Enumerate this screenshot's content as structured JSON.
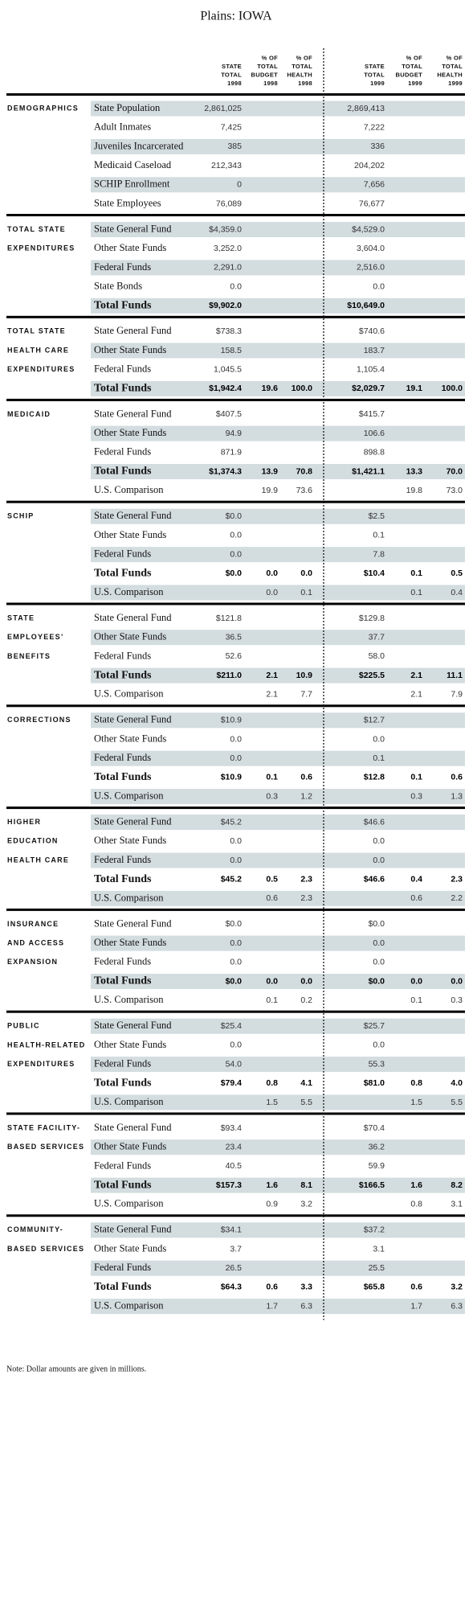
{
  "title": "Plains: IOWA",
  "header": [
    [
      "STATE",
      "TOTAL",
      "1998"
    ],
    [
      "% OF",
      "TOTAL",
      "BUDGET",
      "1998"
    ],
    [
      "% OF",
      "TOTAL",
      "HEALTH",
      "1998"
    ],
    [
      "STATE",
      "TOTAL",
      "1999"
    ],
    [
      "% OF",
      "TOTAL",
      "BUDGET",
      "1999"
    ],
    [
      "% OF",
      "TOTAL",
      "HEALTH",
      "1999"
    ]
  ],
  "sections": [
    {
      "label": [
        "DEMOGRAPHICS"
      ],
      "rows": [
        {
          "name": "State Population",
          "cells": [
            "2,861,025",
            null,
            null,
            "2,869,413",
            null,
            null
          ]
        },
        {
          "name": "Adult Inmates",
          "cells": [
            "7,425",
            null,
            null,
            "7,222",
            null,
            null
          ]
        },
        {
          "name": "Juveniles Incarcerated",
          "cells": [
            "385",
            null,
            null,
            "336",
            null,
            null
          ]
        },
        {
          "name": "Medicaid Caseload",
          "cells": [
            "212,343",
            null,
            null,
            "204,202",
            null,
            null
          ]
        },
        {
          "name": "SCHIP Enrollment",
          "cells": [
            "0",
            null,
            null,
            "7,656",
            null,
            null
          ]
        },
        {
          "name": "State Employees",
          "cells": [
            "76,089",
            null,
            null,
            "76,677",
            null,
            null
          ]
        }
      ]
    },
    {
      "label": [
        "TOTAL STATE",
        "EXPENDITURES"
      ],
      "rows": [
        {
          "name": "State General Fund",
          "cells": [
            "$4,359.0",
            null,
            null,
            "$4,529.0",
            null,
            null
          ]
        },
        {
          "name": "Other State Funds",
          "cells": [
            "3,252.0",
            null,
            null,
            "3,604.0",
            null,
            null
          ]
        },
        {
          "name": "Federal Funds",
          "cells": [
            "2,291.0",
            null,
            null,
            "2,516.0",
            null,
            null
          ]
        },
        {
          "name": "State Bonds",
          "cells": [
            "0.0",
            null,
            null,
            "0.0",
            null,
            null
          ]
        },
        {
          "name": "Total Funds",
          "cells": [
            "$9,902.0",
            null,
            null,
            "$10,649.0",
            null,
            null
          ]
        }
      ]
    },
    {
      "label": [
        "TOTAL STATE",
        "HEALTH CARE",
        "EXPENDITURES"
      ],
      "rows": [
        {
          "name": "State General Fund",
          "cells": [
            "$738.3",
            null,
            null,
            "$740.6",
            null,
            null
          ]
        },
        {
          "name": "Other State Funds",
          "cells": [
            "158.5",
            null,
            null,
            "183.7",
            null,
            null
          ]
        },
        {
          "name": "Federal Funds",
          "cells": [
            "1,045.5",
            null,
            null,
            "1,105.4",
            null,
            null
          ]
        },
        {
          "name": "Total Funds",
          "cells": [
            "$1,942.4",
            "19.6",
            "100.0",
            "$2,029.7",
            "19.1",
            "100.0"
          ]
        }
      ]
    },
    {
      "label": [
        "MEDICAID"
      ],
      "rows": [
        {
          "name": "State General Fund",
          "cells": [
            "$407.5",
            null,
            null,
            "$415.7",
            null,
            null
          ]
        },
        {
          "name": "Other State Funds",
          "cells": [
            "94.9",
            null,
            null,
            "106.6",
            null,
            null
          ]
        },
        {
          "name": "Federal Funds",
          "cells": [
            "871.9",
            null,
            null,
            "898.8",
            null,
            null
          ]
        },
        {
          "name": "Total Funds",
          "cells": [
            "$1,374.3",
            "13.9",
            "70.8",
            "$1,421.1",
            "13.3",
            "70.0"
          ]
        },
        {
          "name": "U.S. Comparison",
          "cells": [
            null,
            "19.9",
            "73.6",
            null,
            "19.8",
            "73.0"
          ]
        }
      ]
    },
    {
      "label": [
        "SCHIP"
      ],
      "rows": [
        {
          "name": "State General Fund",
          "cells": [
            "$0.0",
            null,
            null,
            "$2.5",
            null,
            null
          ]
        },
        {
          "name": "Other State Funds",
          "cells": [
            "0.0",
            null,
            null,
            "0.1",
            null,
            null
          ]
        },
        {
          "name": "Federal Funds",
          "cells": [
            "0.0",
            null,
            null,
            "7.8",
            null,
            null
          ]
        },
        {
          "name": "Total Funds",
          "cells": [
            "$0.0",
            "0.0",
            "0.0",
            "$10.4",
            "0.1",
            "0.5"
          ]
        },
        {
          "name": "U.S. Comparison",
          "cells": [
            null,
            "0.0",
            "0.1",
            null,
            "0.1",
            "0.4"
          ]
        }
      ]
    },
    {
      "label": [
        "STATE",
        "EMPLOYEES’",
        "BENEFITS"
      ],
      "rows": [
        {
          "name": "State General Fund",
          "cells": [
            "$121.8",
            null,
            null,
            "$129.8",
            null,
            null
          ]
        },
        {
          "name": "Other State Funds",
          "cells": [
            "36.5",
            null,
            null,
            "37.7",
            null,
            null
          ]
        },
        {
          "name": "Federal Funds",
          "cells": [
            "52.6",
            null,
            null,
            "58.0",
            null,
            null
          ]
        },
        {
          "name": "Total Funds",
          "cells": [
            "$211.0",
            "2.1",
            "10.9",
            "$225.5",
            "2.1",
            "11.1"
          ]
        },
        {
          "name": "U.S. Comparison",
          "cells": [
            null,
            "2.1",
            "7.7",
            null,
            "2.1",
            "7.9"
          ]
        }
      ]
    },
    {
      "label": [
        "CORRECTIONS"
      ],
      "rows": [
        {
          "name": "State General Fund",
          "cells": [
            "$10.9",
            null,
            null,
            "$12.7",
            null,
            null
          ]
        },
        {
          "name": "Other State Funds",
          "cells": [
            "0.0",
            null,
            null,
            "0.0",
            null,
            null
          ]
        },
        {
          "name": "Federal Funds",
          "cells": [
            "0.0",
            null,
            null,
            "0.1",
            null,
            null
          ]
        },
        {
          "name": "Total Funds",
          "cells": [
            "$10.9",
            "0.1",
            "0.6",
            "$12.8",
            "0.1",
            "0.6"
          ]
        },
        {
          "name": "U.S. Comparison",
          "cells": [
            null,
            "0.3",
            "1.2",
            null,
            "0.3",
            "1.3"
          ]
        }
      ]
    },
    {
      "label": [
        "HIGHER",
        "EDUCATION",
        "HEALTH CARE"
      ],
      "rows": [
        {
          "name": "State General Fund",
          "cells": [
            "$45.2",
            null,
            null,
            "$46.6",
            null,
            null
          ]
        },
        {
          "name": "Other State Funds",
          "cells": [
            "0.0",
            null,
            null,
            "0.0",
            null,
            null
          ]
        },
        {
          "name": "Federal Funds",
          "cells": [
            "0.0",
            null,
            null,
            "0.0",
            null,
            null
          ]
        },
        {
          "name": "Total Funds",
          "cells": [
            "$45.2",
            "0.5",
            "2.3",
            "$46.6",
            "0.4",
            "2.3"
          ]
        },
        {
          "name": "U.S. Comparison",
          "cells": [
            null,
            "0.6",
            "2.3",
            null,
            "0.6",
            "2.2"
          ]
        }
      ]
    },
    {
      "label": [
        "INSURANCE",
        "AND ACCESS",
        "EXPANSION"
      ],
      "rows": [
        {
          "name": "State General Fund",
          "cells": [
            "$0.0",
            null,
            null,
            "$0.0",
            null,
            null
          ]
        },
        {
          "name": "Other State Funds",
          "cells": [
            "0.0",
            null,
            null,
            "0.0",
            null,
            null
          ]
        },
        {
          "name": "Federal Funds",
          "cells": [
            "0.0",
            null,
            null,
            "0.0",
            null,
            null
          ]
        },
        {
          "name": "Total Funds",
          "cells": [
            "$0.0",
            "0.0",
            "0.0",
            "$0.0",
            "0.0",
            "0.0"
          ]
        },
        {
          "name": "U.S. Comparison",
          "cells": [
            null,
            "0.1",
            "0.2",
            null,
            "0.1",
            "0.3"
          ]
        }
      ]
    },
    {
      "label": [
        "PUBLIC",
        "HEALTH-RELATED",
        "EXPENDITURES"
      ],
      "rows": [
        {
          "name": "State General Fund",
          "cells": [
            "$25.4",
            null,
            null,
            "$25.7",
            null,
            null
          ]
        },
        {
          "name": "Other State Funds",
          "cells": [
            "0.0",
            null,
            null,
            "0.0",
            null,
            null
          ]
        },
        {
          "name": "Federal Funds",
          "cells": [
            "54.0",
            null,
            null,
            "55.3",
            null,
            null
          ]
        },
        {
          "name": "Total Funds",
          "cells": [
            "$79.4",
            "0.8",
            "4.1",
            "$81.0",
            "0.8",
            "4.0"
          ]
        },
        {
          "name": "U.S. Comparison",
          "cells": [
            null,
            "1.5",
            "5.5",
            null,
            "1.5",
            "5.5"
          ]
        }
      ]
    },
    {
      "label": [
        "STATE FACILITY-",
        "BASED SERVICES"
      ],
      "rows": [
        {
          "name": "State General Fund",
          "cells": [
            "$93.4",
            null,
            null,
            "$70.4",
            null,
            null
          ]
        },
        {
          "name": "Other State Funds",
          "cells": [
            "23.4",
            null,
            null,
            "36.2",
            null,
            null
          ]
        },
        {
          "name": "Federal Funds",
          "cells": [
            "40.5",
            null,
            null,
            "59.9",
            null,
            null
          ]
        },
        {
          "name": "Total Funds",
          "cells": [
            "$157.3",
            "1.6",
            "8.1",
            "$166.5",
            "1.6",
            "8.2"
          ]
        },
        {
          "name": "U.S. Comparison",
          "cells": [
            null,
            "0.9",
            "3.2",
            null,
            "0.8",
            "3.1"
          ]
        }
      ]
    },
    {
      "label": [
        "COMMUNITY-",
        "BASED SERVICES"
      ],
      "rows": [
        {
          "name": "State General Fund",
          "cells": [
            "$34.1",
            null,
            null,
            "$37.2",
            null,
            null
          ]
        },
        {
          "name": "Other State Funds",
          "cells": [
            "3.7",
            null,
            null,
            "3.1",
            null,
            null
          ]
        },
        {
          "name": "Federal Funds",
          "cells": [
            "26.5",
            null,
            null,
            "25.5",
            null,
            null
          ]
        },
        {
          "name": "Total Funds",
          "cells": [
            "$64.3",
            "0.6",
            "3.3",
            "$65.8",
            "0.6",
            "3.2"
          ]
        },
        {
          "name": "U.S. Comparison",
          "cells": [
            null,
            "1.7",
            "6.3",
            null,
            "1.7",
            "6.3"
          ]
        }
      ]
    }
  ],
  "note": "Note: Dollar amounts are given in millions."
}
